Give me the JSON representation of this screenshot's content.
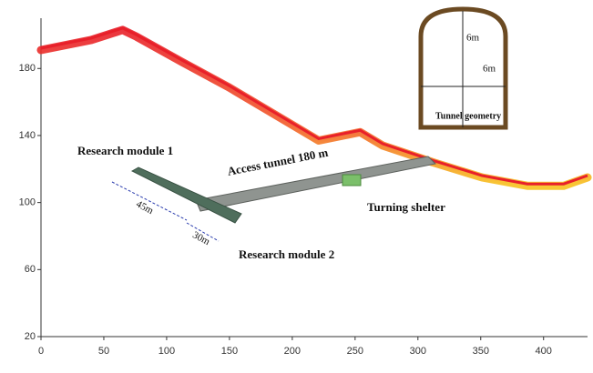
{
  "chart_data": {
    "type": "line",
    "x": [
      0,
      40,
      65,
      76,
      112,
      149,
      185,
      221,
      254,
      272,
      312,
      351,
      387,
      416,
      435
    ],
    "series": [
      {
        "name": null,
        "color": "#e8202a",
        "values": [
          191,
          197,
          203,
          199,
          184,
          169,
          153,
          137,
          142,
          134,
          124,
          115,
          110,
          110,
          115
        ]
      }
    ],
    "xlim": [
      0,
      435
    ],
    "ylim": [
      20,
      210
    ],
    "xticks": [
      0,
      50,
      100,
      150,
      200,
      250,
      300,
      350,
      400
    ],
    "yticks": [
      20,
      60,
      100,
      140,
      180
    ],
    "grid": false,
    "annotations": [
      "Research module 1",
      "Access tunnel 180 m",
      "Turning shelter",
      "Research module 2",
      "45m",
      "30m",
      "6m",
      "6m",
      "Tunnel geometry"
    ]
  }
}
